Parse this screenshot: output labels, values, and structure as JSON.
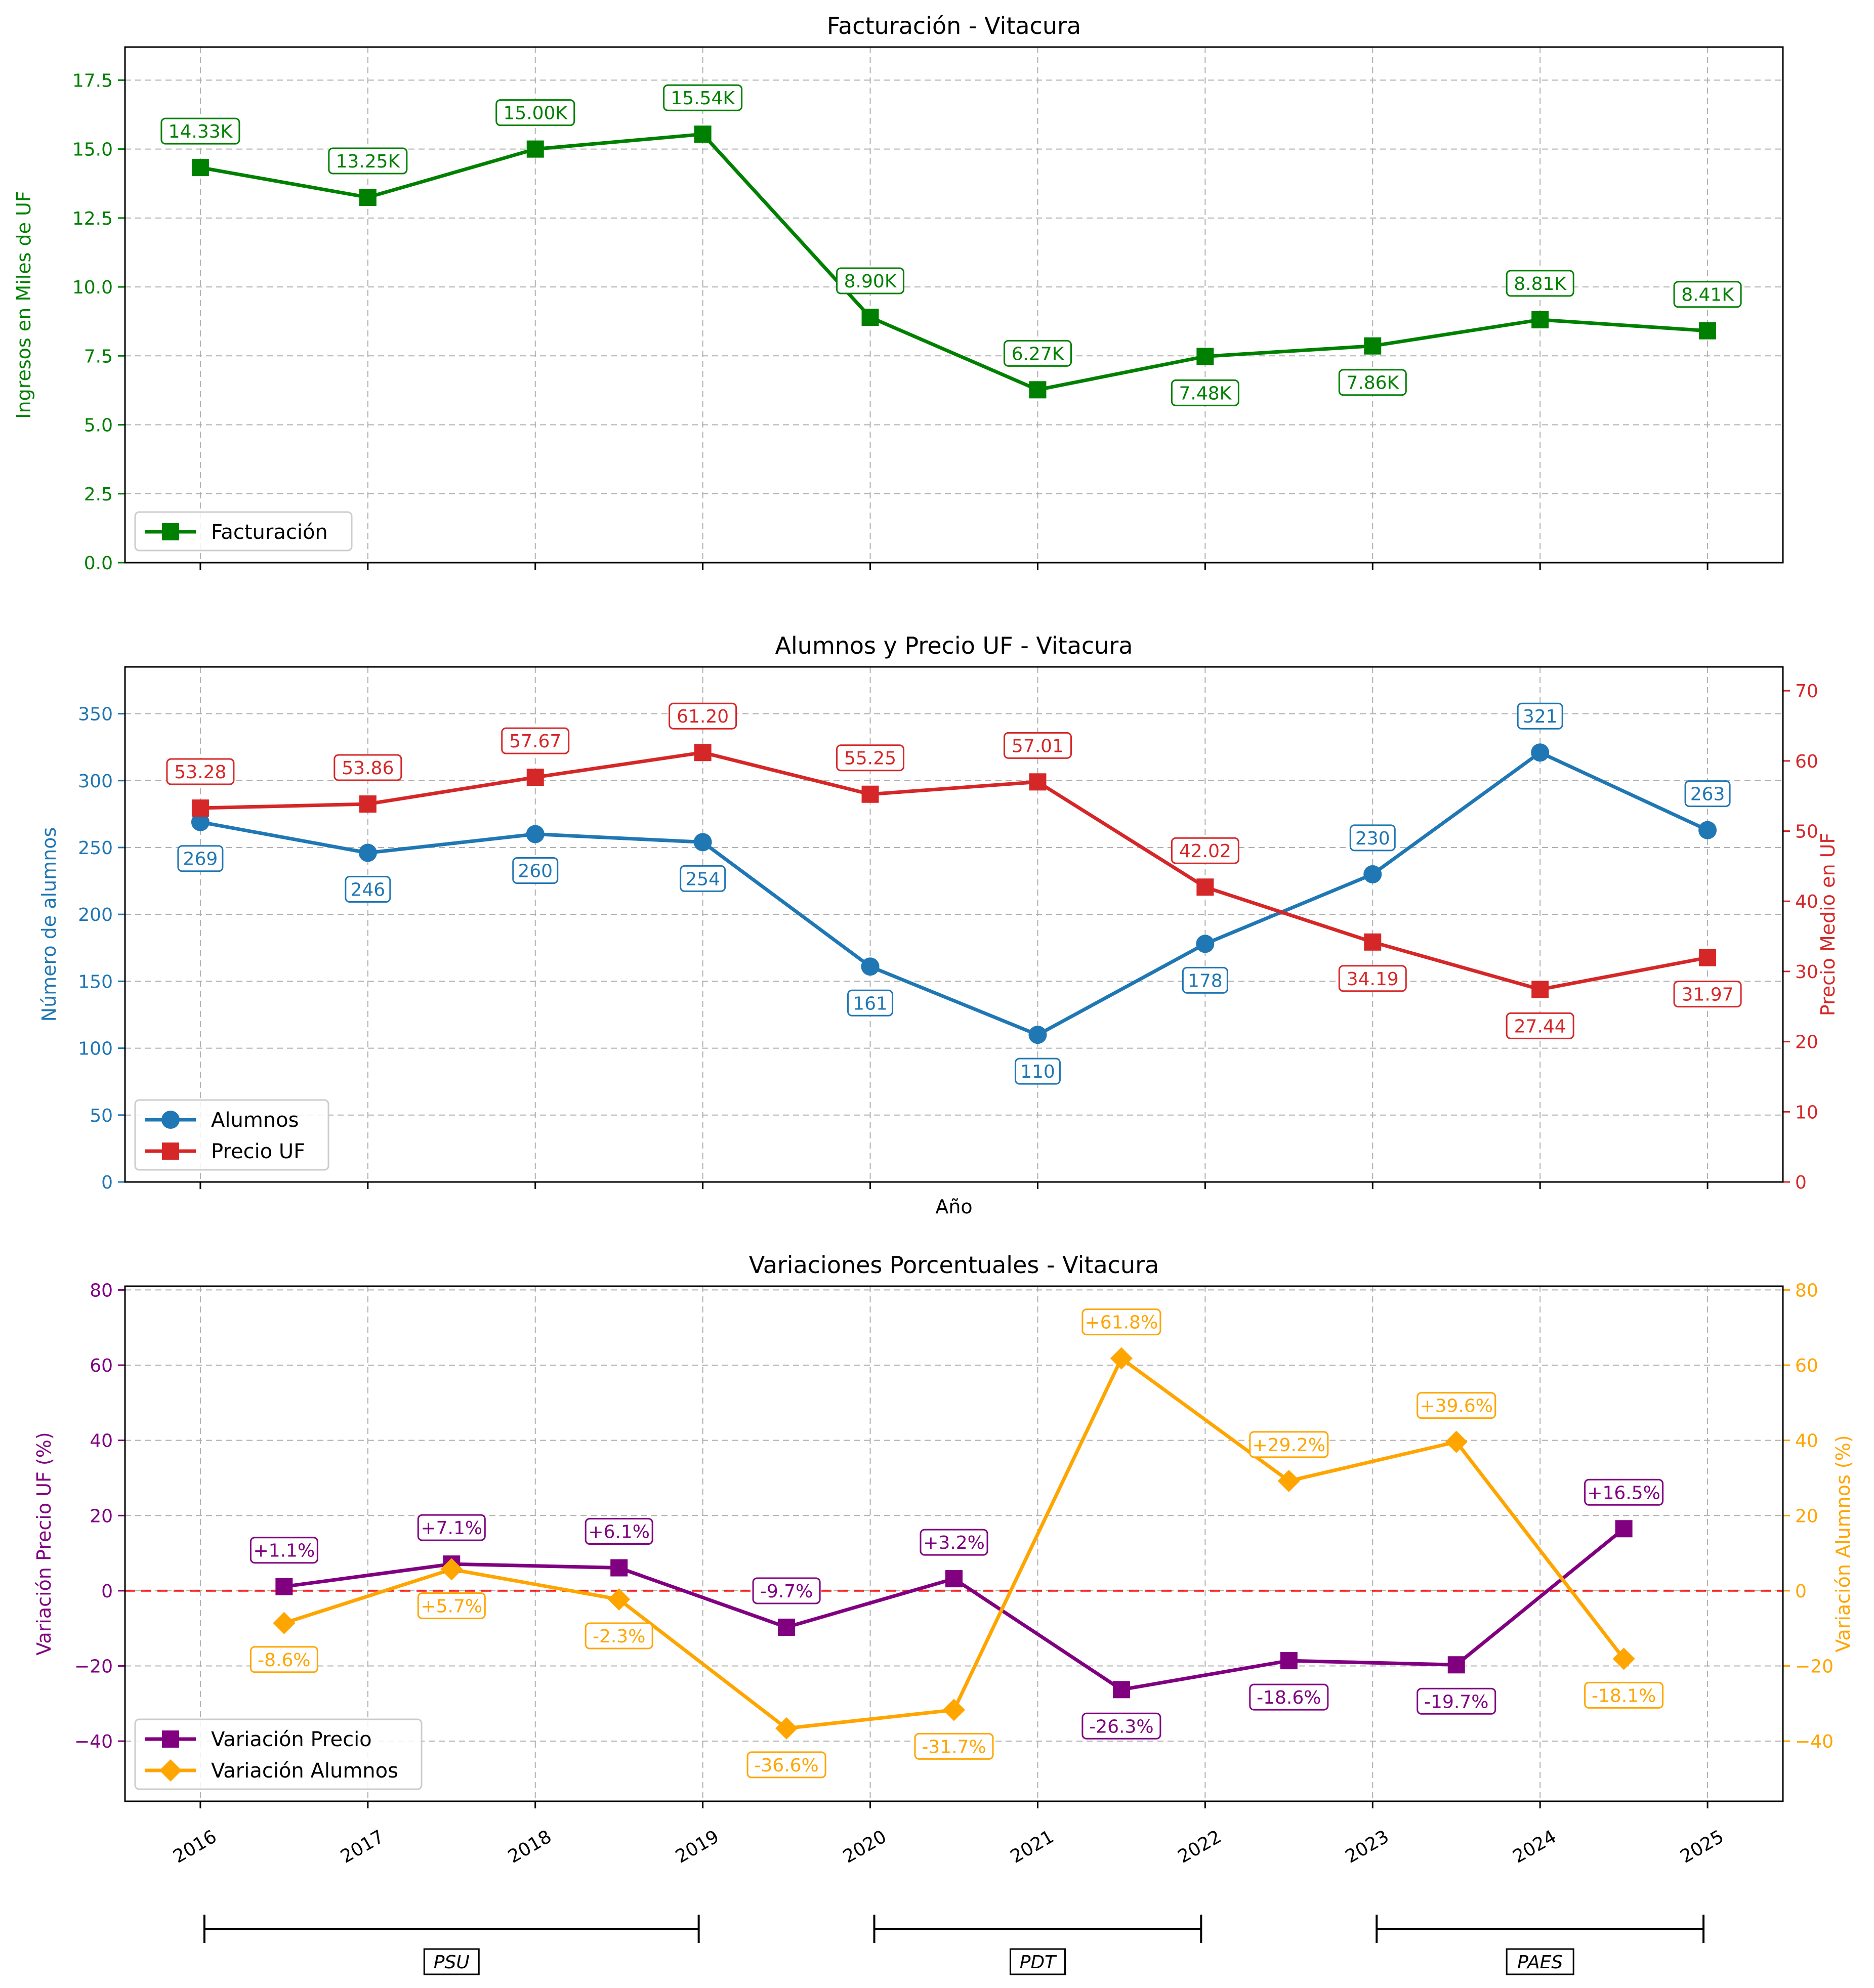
{
  "colors": {
    "revenue": "#008000",
    "students": "#1f77b4",
    "price": "#d62728",
    "price_var": "#800080",
    "students_var": "#ffa500",
    "zero_line": "#ff0000"
  },
  "chart_data": [
    {
      "type": "line",
      "title": "Facturación - Vitacura",
      "ylabel": "Ingresos en Miles de UF",
      "x": [
        2016,
        2017,
        2018,
        2019,
        2020,
        2021,
        2022,
        2023,
        2024,
        2025
      ],
      "ylim": [
        0,
        18.7
      ],
      "yticks": [
        "0.0",
        "2.5",
        "5.0",
        "7.5",
        "10.0",
        "12.5",
        "15.0",
        "17.5"
      ],
      "grid": true,
      "legend": "lower-left",
      "series": [
        {
          "name": "Facturación",
          "values": [
            14.33,
            13.25,
            15.0,
            15.54,
            8.9,
            6.27,
            7.48,
            7.86,
            8.81,
            8.41
          ],
          "labels": [
            "14.33K",
            "13.25K",
            "15.00K",
            "15.54K",
            "8.90K",
            "6.27K",
            "7.48K",
            "7.86K",
            "8.81K",
            "8.41K"
          ],
          "marker": "square"
        }
      ]
    },
    {
      "type": "line",
      "title": "Alumnos y Precio UF - Vitacura",
      "xlabel": "Año",
      "ylabel": "Número de alumnos",
      "ylabel_right": "Precio Medio en UF",
      "x": [
        2016,
        2017,
        2018,
        2019,
        2020,
        2021,
        2022,
        2023,
        2024,
        2025
      ],
      "ylim": [
        0,
        385
      ],
      "ylim_right": [
        0,
        73.4
      ],
      "yticks": [
        "0",
        "50",
        "100",
        "150",
        "200",
        "250",
        "300",
        "350"
      ],
      "yticks_right": [
        "0",
        "10",
        "20",
        "30",
        "40",
        "50",
        "60",
        "70"
      ],
      "grid": true,
      "legend": "lower-left",
      "series": [
        {
          "name": "Alumnos",
          "axis": "left",
          "values": [
            269,
            246,
            260,
            254,
            161,
            110,
            178,
            230,
            321,
            263
          ],
          "labels": [
            "269",
            "246",
            "260",
            "254",
            "161",
            "110",
            "178",
            "230",
            "321",
            "263"
          ],
          "marker": "circle"
        },
        {
          "name": "Precio UF",
          "axis": "right",
          "values": [
            53.28,
            53.86,
            57.67,
            61.2,
            55.25,
            57.01,
            42.02,
            34.19,
            27.44,
            31.97
          ],
          "labels": [
            "53.28",
            "53.86",
            "57.67",
            "61.20",
            "55.25",
            "57.01",
            "42.02",
            "34.19",
            "27.44",
            "31.97"
          ],
          "marker": "square"
        }
      ]
    },
    {
      "type": "line",
      "title": "Variaciones Porcentuales - Vitacura",
      "ylabel": "Variación Precio UF (%)",
      "ylabel_right": "Variación Alumnos (%)",
      "x_ticklabels": [
        "2016",
        "2017",
        "2018",
        "2019",
        "2020",
        "2021",
        "2022",
        "2023",
        "2024",
        "2025"
      ],
      "ylim": [
        -56,
        81
      ],
      "yticks": [
        "−40",
        "−20",
        "0",
        "20",
        "40",
        "60",
        "80"
      ],
      "yticks_right": [
        "−40",
        "−20",
        "0",
        "20",
        "40",
        "60",
        "80"
      ],
      "grid": true,
      "legend": "lower-left",
      "reference_line": 0,
      "series": [
        {
          "name": "Variación Precio",
          "axis": "left",
          "x": [
            2016.5,
            2017.5,
            2018.5,
            2019.5,
            2020.5,
            2021.5,
            2022.5,
            2023.5,
            2024.5
          ],
          "values": [
            1.1,
            7.1,
            6.1,
            -9.7,
            3.2,
            -26.3,
            -18.6,
            -19.7,
            16.5
          ],
          "labels": [
            "+1.1%",
            "+7.1%",
            "+6.1%",
            "-9.7%",
            "+3.2%",
            "-26.3%",
            "-18.6%",
            "-19.7%",
            "+16.5%"
          ],
          "marker": "square"
        },
        {
          "name": "Variación Alumnos",
          "axis": "right",
          "x": [
            2016.5,
            2017.5,
            2018.5,
            2019.5,
            2020.5,
            2021.5,
            2022.5,
            2023.5,
            2024.5
          ],
          "values": [
            -8.6,
            5.7,
            -2.3,
            -36.6,
            -31.7,
            61.8,
            29.2,
            39.6,
            -18.1
          ],
          "labels": [
            "-8.6%",
            "+5.7%",
            "-2.3%",
            "-36.6%",
            "-31.7%",
            "+61.8%",
            "+29.2%",
            "+39.6%",
            "-18.1%"
          ],
          "marker": "diamond"
        }
      ],
      "periods": [
        {
          "label": "PSU",
          "start": 2016,
          "end": 2019
        },
        {
          "label": "PDT",
          "start": 2020,
          "end": 2022
        },
        {
          "label": "PAES",
          "start": 2023,
          "end": 2025
        }
      ]
    }
  ]
}
